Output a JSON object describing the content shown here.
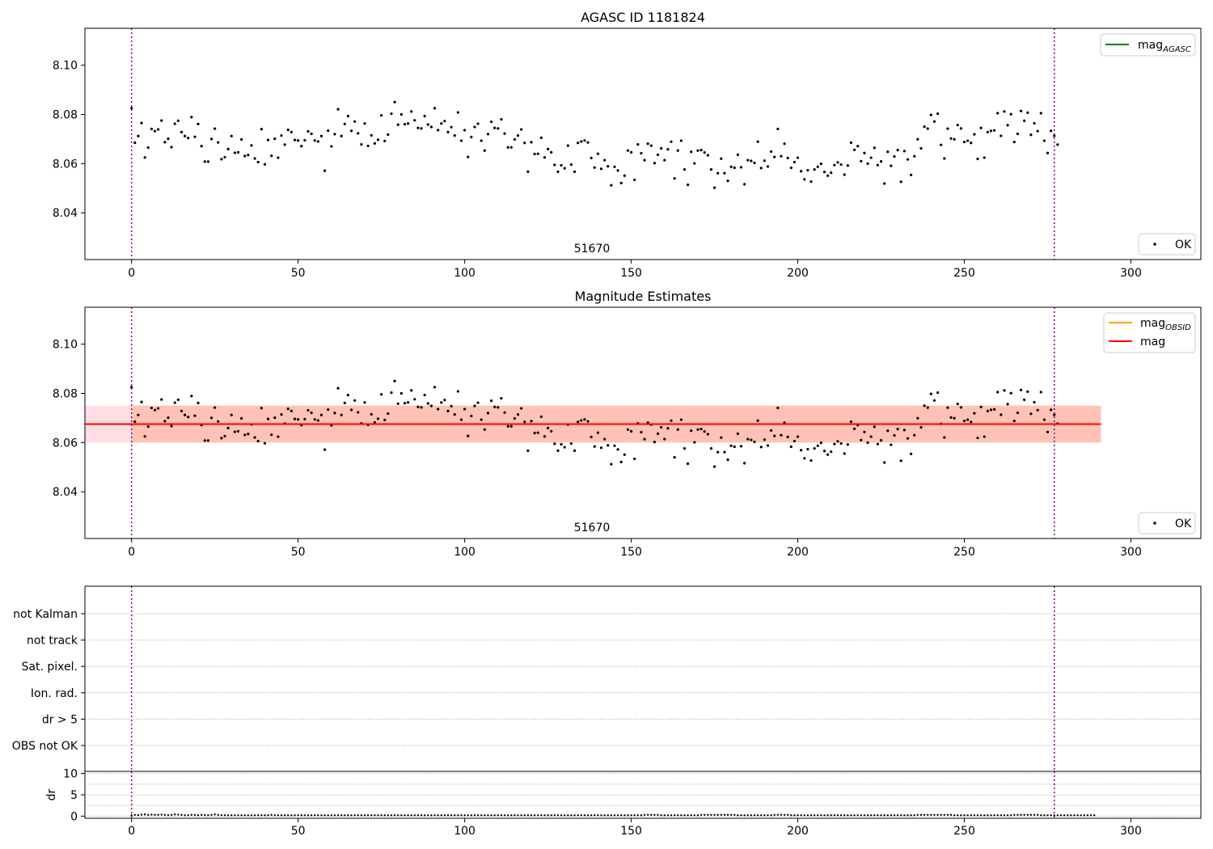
{
  "chart_data": [
    {
      "type": "scatter",
      "title": "AGASC ID 1181824",
      "xlabel": "",
      "ylabel": "",
      "xlim": [
        -14,
        321
      ],
      "ylim": [
        8.021,
        8.115
      ],
      "x_ticks": [
        0,
        50,
        100,
        150,
        200,
        250,
        300
      ],
      "y_ticks": [
        8.04,
        8.06,
        8.08,
        8.1
      ],
      "y_tick_labels": [
        "8.04",
        "8.06",
        "8.08",
        "8.10"
      ],
      "vlines": [
        0,
        277
      ],
      "annotation": "51670",
      "legend_lines": [
        {
          "label": "mag",
          "subscript": "AGASC",
          "color": "#008000"
        }
      ],
      "legend_points": [
        {
          "label": "OK",
          "color": "#000000"
        }
      ],
      "series": [
        {
          "name": "OK",
          "color": "#000000",
          "values_from": "observations.mag"
        }
      ]
    },
    {
      "type": "scatter",
      "title": "Magnitude Estimates",
      "xlabel": "",
      "ylabel": "",
      "xlim": [
        -14,
        321
      ],
      "ylim": [
        8.021,
        8.115
      ],
      "x_ticks": [
        0,
        50,
        100,
        150,
        200,
        250,
        300
      ],
      "y_ticks": [
        8.04,
        8.06,
        8.08,
        8.1
      ],
      "y_tick_labels": [
        "8.04",
        "8.06",
        "8.08",
        "8.10"
      ],
      "vlines": [
        0,
        277
      ],
      "annotation": "51670",
      "mean_mag": 8.0675,
      "band_inner": [
        8.06,
        8.075
      ],
      "band_outer": [
        8.06,
        8.075
      ],
      "band_x_range": [
        0,
        291
      ],
      "legend_lines": [
        {
          "label": "mag",
          "subscript": "OBSID",
          "color": "#ffa500"
        },
        {
          "label": "mag",
          "subscript": "",
          "color": "#ff0000"
        }
      ],
      "legend_points": [
        {
          "label": "OK",
          "color": "#000000"
        }
      ],
      "series": [
        {
          "name": "OK",
          "color": "#000000",
          "values_from": "observations.mag"
        }
      ]
    },
    {
      "type": "flags",
      "categories": [
        "not Kalman",
        "not track",
        "Sat. pixel.",
        "Ion. rad.",
        "dr > 5",
        "OBS not OK"
      ],
      "flag_counts": [
        0,
        0,
        0,
        0,
        0,
        0
      ],
      "xlim": [
        -14,
        321
      ],
      "vlines": [
        0,
        277
      ]
    },
    {
      "type": "scatter",
      "ylabel": "dr",
      "xlim": [
        -14,
        321
      ],
      "ylim": [
        -0.5,
        10.5
      ],
      "x_ticks": [
        0,
        50,
        100,
        150,
        200,
        250,
        300
      ],
      "y_ticks": [
        0,
        5,
        10
      ],
      "y_tick_labels": [
        "0",
        "5",
        "10"
      ],
      "vlines": [
        0,
        277
      ],
      "series": [
        {
          "name": "dr",
          "color": "#000000",
          "values_from": "observations.dr"
        }
      ]
    }
  ],
  "observations": {
    "n": 278,
    "mag": [
      8.0825,
      8.0685,
      8.0712,
      8.0765,
      8.0625,
      8.0665,
      8.0741,
      8.0732,
      8.0739,
      8.0775,
      8.0687,
      8.0701,
      8.0667,
      8.0762,
      8.0774,
      8.0728,
      8.0712,
      8.0704,
      8.0789,
      8.0709,
      8.0761,
      8.0671,
      8.0608,
      8.0608,
      8.07,
      8.0742,
      8.0686,
      8.0618,
      8.0626,
      8.0659,
      8.0712,
      8.0644,
      8.0646,
      8.0698,
      8.0631,
      8.0635,
      8.0674,
      8.0621,
      8.0606,
      8.074,
      8.0597,
      8.0696,
      8.0632,
      8.0701,
      8.0624,
      8.0714,
      8.0677,
      8.0737,
      8.0728,
      8.0696,
      8.0694,
      8.0671,
      8.0695,
      8.0731,
      8.0721,
      8.0694,
      8.069,
      8.0712,
      8.0571,
      8.0734,
      8.067,
      8.072,
      8.0821,
      8.0712,
      8.0761,
      8.0793,
      8.0733,
      8.0771,
      8.0723,
      8.0678,
      8.0763,
      8.0672,
      8.0715,
      8.0682,
      8.0697,
      8.0796,
      8.0692,
      8.0718,
      8.0803,
      8.085,
      8.0758,
      8.08,
      8.076,
      8.0763,
      8.0812,
      8.0776,
      8.0745,
      8.0743,
      8.0793,
      8.0759,
      8.0749,
      8.0825,
      8.0736,
      8.0763,
      8.0773,
      8.0728,
      8.0748,
      8.0714,
      8.0808,
      8.0693,
      8.0736,
      8.0627,
      8.0708,
      8.0749,
      8.0762,
      8.0693,
      8.0653,
      8.072,
      8.077,
      8.0745,
      8.0743,
      8.078,
      8.0722,
      8.0666,
      8.0666,
      8.0698,
      8.0714,
      8.0739,
      8.0684,
      8.0567,
      8.0687,
      8.0639,
      8.064,
      8.0705,
      8.0625,
      8.0659,
      8.0646,
      8.0595,
      8.0567,
      8.0593,
      8.0581,
      8.0673,
      8.0596,
      8.0567,
      8.0684,
      8.069,
      8.0694,
      8.0686,
      8.0623,
      8.0584,
      8.064,
      8.0579,
      8.0614,
      8.0589,
      8.0512,
      8.0587,
      8.0572,
      8.0521,
      8.0551,
      8.0653,
      8.0646,
      8.0534,
      8.0678,
      8.0642,
      8.0614,
      8.0681,
      8.0673,
      8.0602,
      8.0636,
      8.0662,
      8.0614,
      8.0658,
      8.0689,
      8.054,
      8.0653,
      8.0693,
      8.0576,
      8.0514,
      8.0648,
      8.0601,
      8.0653,
      8.0655,
      8.0645,
      8.0634,
      8.0576,
      8.0502,
      8.0561,
      8.062,
      8.0561,
      8.053,
      8.0587,
      8.0583,
      8.0636,
      8.0585,
      8.0516,
      8.0614,
      8.0611,
      8.0603,
      8.0689,
      8.0582,
      8.0612,
      8.0588,
      8.0649,
      8.0627,
      8.0741,
      8.063,
      8.0681,
      8.0623,
      8.0583,
      8.0606,
      8.0624,
      8.0569,
      8.0536,
      8.0573,
      8.0527,
      8.0576,
      8.0587,
      8.0599,
      8.0566,
      8.0551,
      8.0563,
      8.0594,
      8.0605,
      8.0596,
      8.0555,
      8.0592,
      8.0685,
      8.0656,
      8.0671,
      8.061,
      8.0643,
      8.06,
      8.0624,
      8.0664,
      8.0594,
      8.0609,
      8.0519,
      8.0648,
      8.0591,
      8.0629,
      8.0655,
      8.0526,
      8.0651,
      8.0617,
      8.0554,
      8.063,
      8.0699,
      8.0662,
      8.075,
      8.0742,
      8.0798,
      8.0771,
      8.0803,
      8.0676,
      8.0621,
      8.0742,
      8.0702,
      8.0699,
      8.0757,
      8.0743,
      8.0688,
      8.0693,
      8.0684,
      8.0719,
      8.0619,
      8.0745,
      8.0624,
      8.0728,
      8.0733,
      8.0735,
      8.0805,
      8.0713,
      8.0812,
      8.0756,
      8.0801,
      8.0688,
      8.0721,
      8.0814,
      8.0774,
      8.0807,
      8.0717,
      8.0764,
      8.0732,
      8.0805,
      8.0693,
      8.0643,
      8.0733,
      8.0713,
      8.0677
    ],
    "dr": [
      0.2,
      0.3,
      0.25,
      0.35,
      0.4,
      0.3,
      0.35,
      0.3,
      0.3,
      0.35,
      0.3,
      0.2,
      0.3,
      0.4,
      0.35,
      0.3,
      0.2,
      0.2,
      0.3,
      0.3,
      0.2,
      0.3,
      0.25,
      0.2,
      0.3,
      0.4,
      0.3,
      0.2,
      0.2,
      0.2,
      0.2,
      0.2,
      0.2,
      0.2,
      0.2,
      0.2,
      0.2,
      0.2,
      0.2,
      0.2,
      0.2,
      0.2,
      0.3,
      0.2,
      0.2,
      0.2,
      0.2,
      0.2,
      0.2,
      0.2,
      0.2,
      0.2,
      0.2,
      0.2,
      0.2,
      0.2,
      0.2,
      0.2,
      0.2,
      0.2,
      0.2,
      0.2,
      0.2,
      0.2,
      0.2,
      0.2,
      0.2,
      0.2,
      0.2,
      0.2,
      0.2,
      0.2,
      0.2,
      0.2,
      0.2,
      0.2,
      0.2,
      0.2,
      0.2,
      0.2,
      0.2,
      0.2,
      0.2,
      0.2,
      0.2,
      0.2,
      0.2,
      0.2,
      0.2,
      0.2,
      0.2,
      0.2,
      0.2,
      0.2,
      0.2,
      0.2,
      0.2,
      0.2,
      0.2,
      0.2,
      0.2,
      0.2,
      0.2,
      0.2,
      0.2,
      0.2,
      0.2,
      0.2,
      0.2,
      0.2,
      0.2,
      0.2,
      0.2,
      0.2,
      0.2,
      0.2,
      0.2,
      0.2,
      0.2,
      0.2,
      0.2,
      0.2,
      0.2,
      0.2,
      0.2,
      0.2,
      0.2,
      0.2,
      0.2,
      0.2,
      0.2,
      0.2,
      0.2,
      0.2,
      0.2,
      0.2,
      0.2,
      0.2,
      0.2,
      0.2,
      0.2,
      0.2,
      0.2,
      0.2,
      0.2,
      0.2,
      0.2,
      0.2,
      0.2,
      0.2,
      0.2,
      0.2,
      0.2,
      0.2,
      0.3,
      0.3,
      0.3,
      0.3,
      0.3,
      0.2,
      0.2,
      0.2,
      0.2,
      0.2,
      0.2,
      0.2,
      0.2,
      0.2,
      0.2,
      0.2,
      0.2,
      0.3,
      0.3,
      0.3,
      0.3,
      0.3,
      0.3,
      0.3,
      0.3,
      0.3,
      0.3,
      0.3,
      0.2,
      0.2,
      0.2,
      0.2,
      0.2,
      0.2,
      0.2,
      0.2,
      0.2,
      0.2,
      0.2,
      0.3,
      0.3,
      0.3,
      0.3,
      0.3,
      0.2,
      0.2,
      0.2,
      0.2,
      0.2,
      0.2,
      0.2,
      0.2,
      0.2,
      0.2,
      0.2,
      0.2,
      0.2,
      0.2,
      0.2,
      0.2,
      0.2,
      0.2,
      0.2,
      0.2,
      0.2,
      0.2,
      0.2,
      0.2,
      0.2,
      0.2,
      0.2,
      0.2,
      0.2,
      0.2,
      0.2,
      0.2,
      0.2,
      0.2,
      0.2,
      0.2,
      0.2,
      0.2,
      0.3,
      0.3,
      0.3,
      0.3,
      0.3,
      0.3,
      0.3,
      0.3,
      0.3,
      0.3,
      0.3,
      0.2,
      0.2,
      0.2,
      0.2,
      0.2,
      0.2,
      0.2,
      0.2,
      0.2,
      0.2,
      0.2,
      0.2,
      0.2,
      0.2,
      0.2,
      0.2,
      0.2,
      0.2,
      0.3,
      0.3,
      0.3,
      0.3,
      0.3,
      0.3,
      0.3,
      0.3,
      0.2,
      0.2,
      0.2,
      0.2,
      0.2,
      0.2,
      0.2,
      0.2,
      0.2,
      0.2,
      0.2,
      0.2,
      0.2,
      0.2,
      0.2,
      0.2,
      0.2
    ]
  },
  "colors": {
    "points": "#000000",
    "vline": "#800080",
    "mean_line": "#ff0000",
    "band_inner": "#ffa07a",
    "band_outer": "#ffb6c1",
    "grid": "#b0b0b0"
  }
}
